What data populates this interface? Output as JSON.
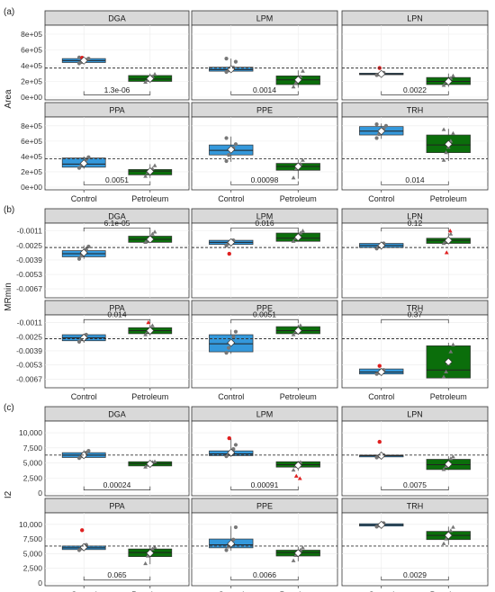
{
  "chart_data": [
    {
      "tag": "(a)",
      "type": "box",
      "ylabel": "Area",
      "categories": [
        "Control",
        "Petroleum"
      ],
      "ylim": [
        0,
        880000
      ],
      "yticks": [
        0,
        200000,
        400000,
        600000,
        800000
      ],
      "ytick_labels": [
        "0e+00",
        "2e+05",
        "4e+05",
        "6e+05",
        "8e+05"
      ],
      "ref_line": 370000,
      "panels": [
        {
          "name": "DGA",
          "pvalue": "1.3e-06",
          "bracket_y": 30000,
          "control": {
            "q1": 440000,
            "median": 465000,
            "q3": 490000,
            "lo": 430000,
            "hi": 510000,
            "mean": 465000,
            "points": [
              430000,
              445000,
              460000,
              475000,
              490000,
              505000
            ],
            "outliers": [
              500000
            ]
          },
          "petroleum": {
            "q1": 200000,
            "median": 230000,
            "q3": 275000,
            "lo": 180000,
            "hi": 300000,
            "mean": 235000,
            "points": [
              190000,
              215000,
              240000,
              260000,
              290000
            ],
            "outliers": []
          }
        },
        {
          "name": "LPM",
          "pvalue": "0.0014",
          "bracket_y": 30000,
          "control": {
            "q1": 330000,
            "median": 350000,
            "q3": 380000,
            "lo": 310000,
            "hi": 490000,
            "mean": 355000,
            "points": [
              320000,
              340000,
              360000,
              375000,
              450000,
              490000
            ],
            "outliers": []
          },
          "petroleum": {
            "q1": 160000,
            "median": 220000,
            "q3": 270000,
            "lo": 120000,
            "hi": 340000,
            "mean": 220000,
            "points": [
              130000,
              180000,
              230000,
              260000,
              330000
            ],
            "outliers": []
          }
        },
        {
          "name": "LPN",
          "pvalue": "0.0022",
          "bracket_y": 30000,
          "control": {
            "q1": 285000,
            "median": 295000,
            "q3": 305000,
            "lo": 270000,
            "hi": 320000,
            "mean": 295000,
            "points": [
              280000,
              290000,
              300000,
              310000
            ],
            "outliers": [
              370000
            ]
          },
          "petroleum": {
            "q1": 160000,
            "median": 200000,
            "q3": 250000,
            "lo": 130000,
            "hi": 300000,
            "mean": 200000,
            "points": [
              150000,
              190000,
              220000,
              240000,
              270000
            ],
            "outliers": []
          }
        },
        {
          "name": "PPA",
          "pvalue": "0.0051",
          "bracket_y": 30000,
          "control": {
            "q1": 260000,
            "median": 300000,
            "q3": 380000,
            "lo": 240000,
            "hi": 400000,
            "mean": 310000,
            "points": [
              250000,
              290000,
              320000,
              360000,
              390000
            ],
            "outliers": []
          },
          "petroleum": {
            "q1": 160000,
            "median": 210000,
            "q3": 230000,
            "lo": 120000,
            "hi": 300000,
            "mean": 205000,
            "points": [
              140000,
              190000,
              220000,
              240000,
              280000
            ],
            "outliers": []
          }
        },
        {
          "name": "PPE",
          "pvalue": "0.00098",
          "bracket_y": 30000,
          "control": {
            "q1": 420000,
            "median": 480000,
            "q3": 550000,
            "lo": 330000,
            "hi": 660000,
            "mean": 490000,
            "points": [
              340000,
              420000,
              470000,
              510000,
              560000,
              640000
            ],
            "outliers": []
          },
          "petroleum": {
            "q1": 220000,
            "median": 270000,
            "q3": 310000,
            "lo": 110000,
            "hi": 360000,
            "mean": 270000,
            "points": [
              120000,
              230000,
              270000,
              300000,
              350000
            ],
            "outliers": []
          }
        },
        {
          "name": "TRH",
          "pvalue": "0.014",
          "bracket_y": 30000,
          "control": {
            "q1": 680000,
            "median": 730000,
            "q3": 790000,
            "lo": 630000,
            "hi": 830000,
            "mean": 730000,
            "points": [
              640000,
              690000,
              720000,
              760000,
              800000,
              820000
            ],
            "outliers": []
          },
          "petroleum": {
            "q1": 450000,
            "median": 550000,
            "q3": 680000,
            "lo": 340000,
            "hi": 760000,
            "mean": 560000,
            "points": [
              350000,
              450000,
              520000,
              600000,
              700000,
              750000
            ],
            "outliers": []
          }
        }
      ]
    },
    {
      "tag": "(b)",
      "type": "box",
      "ylabel": "MRmin",
      "categories": [
        "Control",
        "Petroleum"
      ],
      "ylim": [
        -0.0073,
        -0.0006
      ],
      "yticks": [
        -0.0067,
        -0.0053,
        -0.0039,
        -0.0025,
        -0.0011
      ],
      "ytick_labels": [
        "-0.0067",
        "-0.0053",
        "-0.0039",
        "-0.0025",
        "-0.0011"
      ],
      "ref_line": -0.0027,
      "panels": [
        {
          "name": "DGA",
          "pvalue": "6.1e-05",
          "bracket_y": -0.0008,
          "control": {
            "q1": -0.0036,
            "median": -0.0033,
            "q3": -0.003,
            "lo": -0.0038,
            "hi": -0.0025,
            "mean": -0.0032,
            "points": [
              -0.0038,
              -0.0035,
              -0.0032,
              -0.0029,
              -0.0026
            ],
            "outliers": []
          },
          "petroleum": {
            "q1": -0.0022,
            "median": -0.0019,
            "q3": -0.0016,
            "lo": -0.0022,
            "hi": -0.0011,
            "mean": -0.0019,
            "points": [
              -0.0022,
              -0.002,
              -0.0018,
              -0.0014,
              -0.0012
            ],
            "outliers": []
          }
        },
        {
          "name": "LPM",
          "pvalue": "0.016",
          "bracket_y": -0.0008,
          "control": {
            "q1": -0.0024,
            "median": -0.0022,
            "q3": -0.002,
            "lo": -0.0026,
            "hi": -0.0019,
            "mean": -0.0022,
            "points": [
              -0.0025,
              -0.0023,
              -0.0021,
              -0.002
            ],
            "outliers": [
              -0.0033
            ]
          },
          "petroleum": {
            "q1": -0.0021,
            "median": -0.0018,
            "q3": -0.0013,
            "lo": -0.0021,
            "hi": -0.001,
            "mean": -0.0017,
            "points": [
              -0.0021,
              -0.0018,
              -0.0016,
              -0.0013,
              -0.0011
            ],
            "outliers": []
          }
        },
        {
          "name": "LPN",
          "pvalue": "0.12",
          "bracket_y": -0.0008,
          "control": {
            "q1": -0.0027,
            "median": -0.0025,
            "q3": -0.0023,
            "lo": -0.0029,
            "hi": -0.0022,
            "mean": -0.0025,
            "points": [
              -0.0028,
              -0.0026,
              -0.0024,
              -0.0023
            ],
            "outliers": []
          },
          "petroleum": {
            "q1": -0.0023,
            "median": -0.002,
            "q3": -0.0018,
            "lo": -0.0024,
            "hi": -0.0013,
            "mean": -0.002,
            "points": [
              -0.0023,
              -0.0021,
              -0.0019,
              -0.0014
            ],
            "outliers": [
              -0.0032,
              -0.0011
            ]
          }
        },
        {
          "name": "PPA",
          "pvalue": "0.014",
          "bracket_y": -0.0008,
          "control": {
            "q1": -0.0029,
            "median": -0.0026,
            "q3": -0.0023,
            "lo": -0.0031,
            "hi": -0.0022,
            "mean": -0.0026,
            "points": [
              -0.003,
              -0.0027,
              -0.0025,
              -0.0023
            ],
            "outliers": []
          },
          "petroleum": {
            "q1": -0.0022,
            "median": -0.0019,
            "q3": -0.0016,
            "lo": -0.0024,
            "hi": -0.0013,
            "mean": -0.0019,
            "points": [
              -0.0023,
              -0.002,
              -0.0017,
              -0.0014
            ],
            "outliers": [
              -0.0011
            ]
          }
        },
        {
          "name": "PPE",
          "pvalue": "0.0051",
          "bracket_y": -0.0008,
          "control": {
            "q1": -0.004,
            "median": -0.0032,
            "q3": -0.0023,
            "lo": -0.0042,
            "hi": -0.0018,
            "mean": -0.0031,
            "points": [
              -0.0041,
              -0.0036,
              -0.003,
              -0.0025,
              -0.002
            ],
            "outliers": []
          },
          "petroleum": {
            "q1": -0.0022,
            "median": -0.0019,
            "q3": -0.0015,
            "lo": -0.0023,
            "hi": -0.0013,
            "mean": -0.0019,
            "points": [
              -0.0023,
              -0.002,
              -0.0017,
              -0.0014
            ],
            "outliers": []
          }
        },
        {
          "name": "TRH",
          "pvalue": "0.37",
          "bracket_y": -0.0008,
          "control": {
            "q1": -0.0062,
            "median": -0.006,
            "q3": -0.0057,
            "lo": -0.0062,
            "hi": -0.0057,
            "mean": -0.006,
            "points": [
              -0.0062,
              -0.0061,
              -0.0059,
              -0.0058
            ],
            "outliers": [
              -0.0054
            ]
          },
          "petroleum": {
            "q1": -0.0066,
            "median": -0.0058,
            "q3": -0.0034,
            "lo": -0.0066,
            "hi": -0.0031,
            "mean": -0.005,
            "points": [
              -0.0065,
              -0.006,
              -0.0052,
              -0.004,
              -0.0033
            ],
            "outliers": []
          }
        }
      ]
    },
    {
      "tag": "(c)",
      "type": "box",
      "ylabel": "I2",
      "categories": [
        "Control",
        "Petroleum"
      ],
      "ylim": [
        0,
        11500
      ],
      "yticks": [
        0,
        2500,
        5000,
        7500,
        10000
      ],
      "ytick_labels": [
        "0",
        "2,500",
        "5,000",
        "7,500",
        "10,000"
      ],
      "ref_line": 6300,
      "panels": [
        {
          "name": "DGA",
          "pvalue": "0.00024",
          "bracket_y": 500,
          "control": {
            "q1": 5900,
            "median": 6300,
            "q3": 6700,
            "lo": 5700,
            "hi": 7100,
            "mean": 6300,
            "points": [
              5800,
              6100,
              6400,
              6700,
              7000
            ],
            "outliers": []
          },
          "petroleum": {
            "q1": 4500,
            "median": 4900,
            "q3": 5200,
            "lo": 4200,
            "hi": 5300,
            "mean": 4850,
            "points": [
              4300,
              4600,
              4900,
              5100,
              5200
            ],
            "outliers": []
          }
        },
        {
          "name": "LPM",
          "pvalue": "0.00091",
          "bracket_y": 500,
          "control": {
            "q1": 6200,
            "median": 6500,
            "q3": 7000,
            "lo": 6000,
            "hi": 9000,
            "mean": 6700,
            "points": [
              6100,
              6400,
              6700,
              7300,
              8000
            ],
            "outliers": [
              9100
            ]
          },
          "petroleum": {
            "q1": 4300,
            "median": 4700,
            "q3": 5200,
            "lo": 3700,
            "hi": 5300,
            "mean": 4600,
            "points": [
              3800,
              4400,
              4800,
              5100
            ],
            "outliers": [
              2800,
              2400
            ]
          }
        },
        {
          "name": "LPN",
          "pvalue": "0.0075",
          "bracket_y": 500,
          "control": {
            "q1": 6000,
            "median": 6200,
            "q3": 6300,
            "lo": 5900,
            "hi": 6400,
            "mean": 6200,
            "points": [
              5900,
              6100,
              6200,
              6300
            ],
            "outliers": [
              8500
            ]
          },
          "petroleum": {
            "q1": 3900,
            "median": 4700,
            "q3": 5600,
            "lo": 3800,
            "hi": 6100,
            "mean": 4800,
            "points": [
              3900,
              4400,
              5000,
              5700,
              6000
            ],
            "outliers": []
          }
        },
        {
          "name": "PPA",
          "pvalue": "0.065",
          "bracket_y": 500,
          "control": {
            "q1": 5700,
            "median": 6000,
            "q3": 6300,
            "lo": 5500,
            "hi": 6700,
            "mean": 6100,
            "points": [
              5600,
              5900,
              6200,
              6500
            ],
            "outliers": [
              9000
            ]
          },
          "petroleum": {
            "q1": 4500,
            "median": 5200,
            "q3": 5800,
            "lo": 3200,
            "hi": 6200,
            "mean": 5100,
            "points": [
              3300,
              4600,
              5300,
              5800,
              6100
            ],
            "outliers": []
          }
        },
        {
          "name": "PPE",
          "pvalue": "0.0066",
          "bracket_y": 500,
          "control": {
            "q1": 6000,
            "median": 6500,
            "q3": 7500,
            "lo": 5500,
            "hi": 9700,
            "mean": 6700,
            "points": [
              5600,
              6200,
              6800,
              7400,
              9500
            ],
            "outliers": []
          },
          "petroleum": {
            "q1": 4600,
            "median": 5200,
            "q3": 5600,
            "lo": 3700,
            "hi": 6200,
            "mean": 5100,
            "points": [
              3800,
              4700,
              5200,
              5600,
              6000
            ],
            "outliers": []
          }
        },
        {
          "name": "TRH",
          "pvalue": "0.0029",
          "bracket_y": 500,
          "control": {
            "q1": 9700,
            "median": 9900,
            "q3": 10100,
            "lo": 9500,
            "hi": 10300,
            "mean": 9900,
            "points": [
              9600,
              9800,
              10000,
              10200
            ],
            "outliers": []
          },
          "petroleum": {
            "q1": 7400,
            "median": 8100,
            "q3": 8800,
            "lo": 6500,
            "hi": 9600,
            "mean": 8100,
            "points": [
              6700,
              7500,
              8200,
              8900,
              9500
            ],
            "outliers": []
          }
        }
      ]
    }
  ],
  "colors": {
    "control": "#3498db",
    "petroleum": "#0b6e0b",
    "outlier": "#e02020",
    "point": "#777777",
    "mean_fill": "#ffffff"
  }
}
